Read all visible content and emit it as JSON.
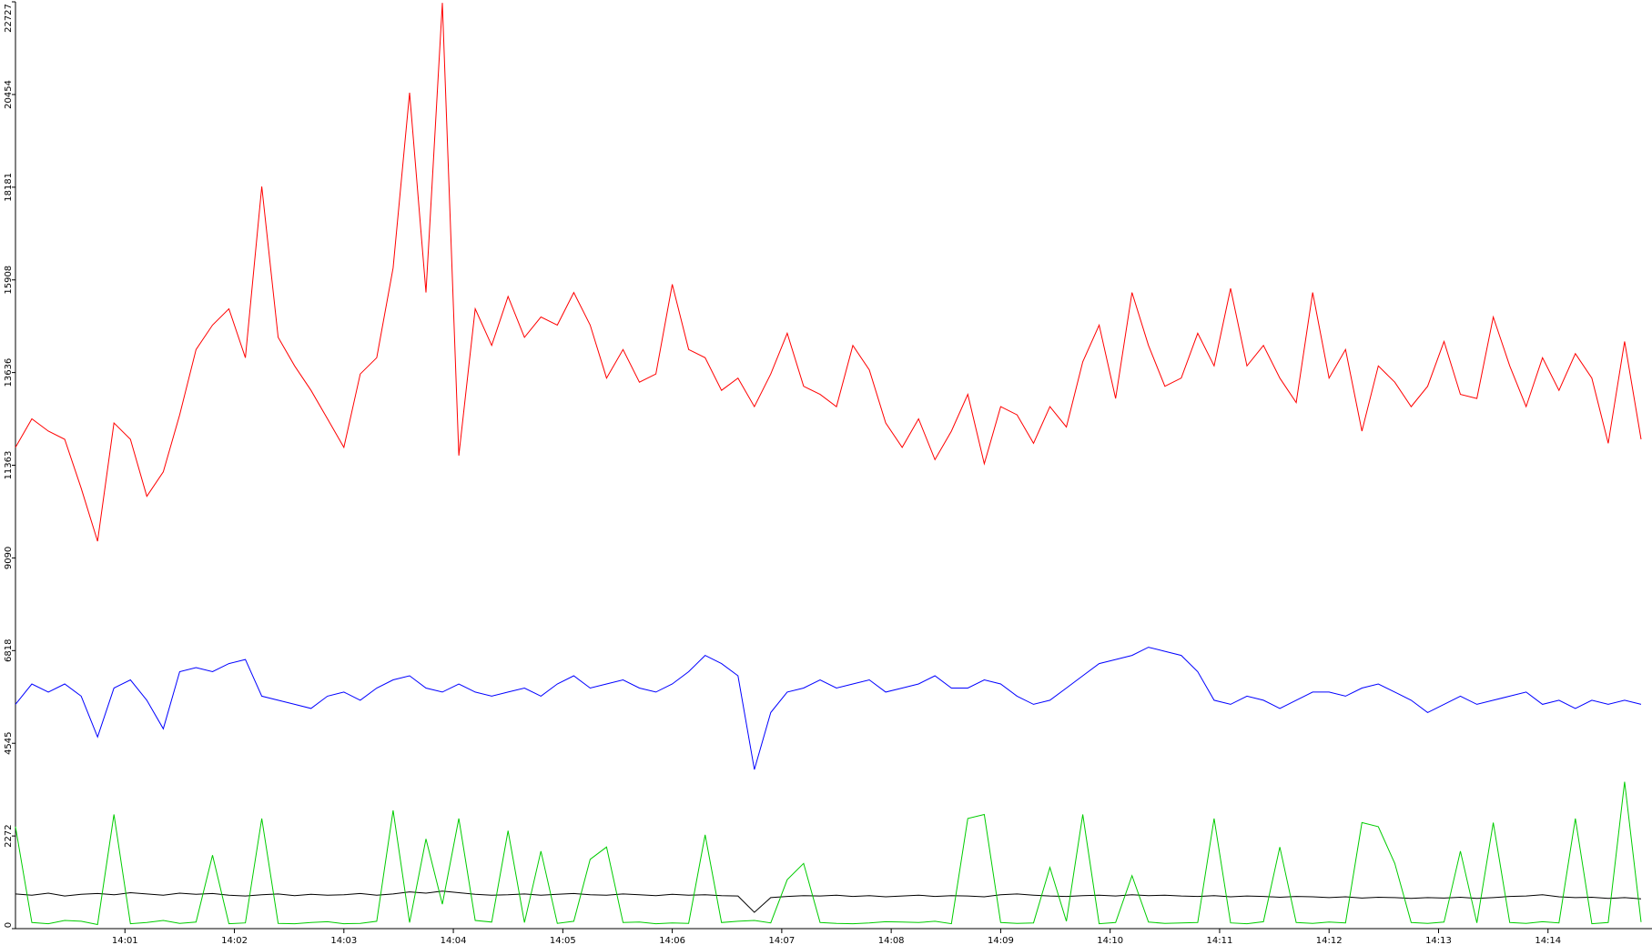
{
  "chart_data": {
    "type": "line",
    "x": [
      0,
      0.15,
      0.3,
      0.45,
      0.6,
      0.75,
      0.9,
      1.05,
      1.2,
      1.35,
      1.5,
      1.65,
      1.8,
      1.95,
      2.1,
      2.25,
      2.4,
      2.55,
      2.7,
      2.85,
      3,
      3.15,
      3.3,
      3.45,
      3.6,
      3.75,
      3.9,
      4.05,
      4.2,
      4.35,
      4.5,
      4.65,
      4.8,
      4.95,
      5.1,
      5.25,
      5.4,
      5.55,
      5.7,
      5.85,
      6,
      6.15,
      6.3,
      6.45,
      6.6,
      6.75,
      6.9,
      7.05,
      7.2,
      7.35,
      7.5,
      7.65,
      7.8,
      7.95,
      8.1,
      8.25,
      8.4,
      8.55,
      8.7,
      8.85,
      9,
      9.15,
      9.3,
      9.45,
      9.6,
      9.75,
      9.9,
      10.05,
      10.2,
      10.35,
      10.5,
      10.65,
      10.8,
      10.95,
      11.1,
      11.25,
      11.4,
      11.55,
      11.7,
      11.85,
      12,
      12.15,
      12.3,
      12.45,
      12.6,
      12.75,
      12.9,
      13.05,
      13.2,
      13.35,
      13.5,
      13.65,
      13.8,
      13.95,
      14.1,
      14.25,
      14.4,
      14.55,
      14.7,
      14.85
    ],
    "series": [
      {
        "color": "#ff0000",
        "values": [
          11800,
          12500,
          12200,
          12000,
          10800,
          9500,
          12400,
          12000,
          10600,
          11200,
          12600,
          14200,
          14800,
          15200,
          14000,
          18200,
          14500,
          13800,
          13200,
          12500,
          11800,
          13600,
          14000,
          16200,
          20500,
          15600,
          22700,
          11600,
          15200,
          14300,
          15500,
          14500,
          15000,
          14800,
          15600,
          14800,
          13500,
          14200,
          13400,
          13600,
          15800,
          14200,
          14000,
          13200,
          13500,
          12800,
          13600,
          14600,
          13300,
          13100,
          12800,
          14300,
          13700,
          12400,
          11800,
          12500,
          11500,
          12200,
          13100,
          11400,
          12800,
          12600,
          11900,
          12800,
          12300,
          13900,
          14800,
          13000,
          15600,
          14300,
          13300,
          13500,
          14600,
          13800,
          15700,
          13800,
          14300,
          13500,
          12900,
          15600,
          13500,
          14200,
          12200,
          13800,
          13400,
          12800,
          13300,
          14400,
          13100,
          13000,
          15000,
          13800,
          12800,
          14000,
          13200,
          14100,
          13500,
          11900,
          14400,
          12000
        ]
      },
      {
        "color": "#0000ff",
        "values": [
          5500,
          6000,
          5800,
          6000,
          5700,
          4700,
          5900,
          6100,
          5600,
          4900,
          6300,
          6400,
          6300,
          6500,
          6600,
          5700,
          5600,
          5500,
          5400,
          5700,
          5800,
          5600,
          5900,
          6100,
          6200,
          5900,
          5800,
          6000,
          5800,
          5700,
          5800,
          5900,
          5700,
          6000,
          6200,
          5900,
          6000,
          6100,
          5900,
          5800,
          6000,
          6300,
          6700,
          6500,
          6200,
          3900,
          5300,
          5800,
          5900,
          6100,
          5900,
          6000,
          6100,
          5800,
          5900,
          6000,
          6200,
          5900,
          5900,
          6100,
          6000,
          5700,
          5500,
          5600,
          5900,
          6200,
          6500,
          6600,
          6700,
          6900,
          6800,
          6700,
          6300,
          5600,
          5500,
          5700,
          5600,
          5400,
          5600,
          5800,
          5800,
          5700,
          5900,
          6000,
          5800,
          5600,
          5300,
          5500,
          5700,
          5500,
          5600,
          5700,
          5800,
          5500,
          5600,
          5400,
          5600,
          5500,
          5600,
          5500
        ]
      },
      {
        "color": "#000000",
        "values": [
          850,
          820,
          870,
          800,
          840,
          860,
          830,
          880,
          850,
          820,
          870,
          840,
          860,
          820,
          800,
          830,
          850,
          810,
          840,
          820,
          830,
          860,
          820,
          850,
          900,
          870,
          920,
          880,
          840,
          820,
          830,
          850,
          820,
          840,
          860,
          830,
          820,
          850,
          830,
          810,
          840,
          820,
          830,
          810,
          800,
          400,
          760,
          790,
          810,
          800,
          820,
          790,
          810,
          780,
          800,
          820,
          790,
          810,
          800,
          780,
          830,
          850,
          820,
          800,
          790,
          810,
          820,
          800,
          830,
          810,
          820,
          800,
          790,
          810,
          780,
          800,
          790,
          770,
          790,
          780,
          760,
          780,
          750,
          770,
          760,
          740,
          760,
          750,
          770,
          740,
          760,
          790,
          800,
          830,
          780,
          760,
          770,
          740,
          760,
          730
        ]
      },
      {
        "color": "#00cc00",
        "values": [
          2500,
          150,
          120,
          200,
          180,
          100,
          2800,
          120,
          150,
          200,
          130,
          160,
          1800,
          120,
          140,
          2700,
          130,
          120,
          150,
          170,
          120,
          130,
          180,
          2900,
          150,
          2200,
          600,
          2700,
          200,
          160,
          2400,
          150,
          1900,
          130,
          180,
          1700,
          2000,
          150,
          160,
          120,
          140,
          130,
          2300,
          150,
          180,
          200,
          140,
          1200,
          1600,
          150,
          130,
          120,
          140,
          170,
          160,
          150,
          180,
          120,
          2700,
          2800,
          150,
          130,
          140,
          1500,
          180,
          2800,
          120,
          150,
          1300,
          160,
          130,
          140,
          150,
          2700,
          140,
          120,
          170,
          2000,
          150,
          130,
          160,
          140,
          2600,
          2500,
          1600,
          150,
          130,
          160,
          1900,
          140,
          2600,
          150,
          130,
          170,
          140,
          2700,
          120,
          150,
          3600,
          160
        ]
      }
    ],
    "xlim": [
      0,
      14.95
    ],
    "xticks": [
      {
        "value": 1,
        "label": "14:01"
      },
      {
        "value": 2,
        "label": "14:02"
      },
      {
        "value": 3,
        "label": "14:03"
      },
      {
        "value": 4,
        "label": "14:04"
      },
      {
        "value": 5,
        "label": "14:05"
      },
      {
        "value": 6,
        "label": "14:06"
      },
      {
        "value": 7,
        "label": "14:07"
      },
      {
        "value": 8,
        "label": "14:08"
      },
      {
        "value": 9,
        "label": "14:09"
      },
      {
        "value": 10,
        "label": "14:10"
      },
      {
        "value": 11,
        "label": "14:11"
      },
      {
        "value": 12,
        "label": "14:12"
      },
      {
        "value": 13,
        "label": "14:13"
      },
      {
        "value": 14,
        "label": "14:14"
      }
    ],
    "ylim": [
      0,
      22727
    ],
    "yticks": [
      0,
      2272,
      4545,
      6818,
      9090,
      11363,
      13636,
      15908,
      18181,
      20454,
      22727
    ]
  }
}
